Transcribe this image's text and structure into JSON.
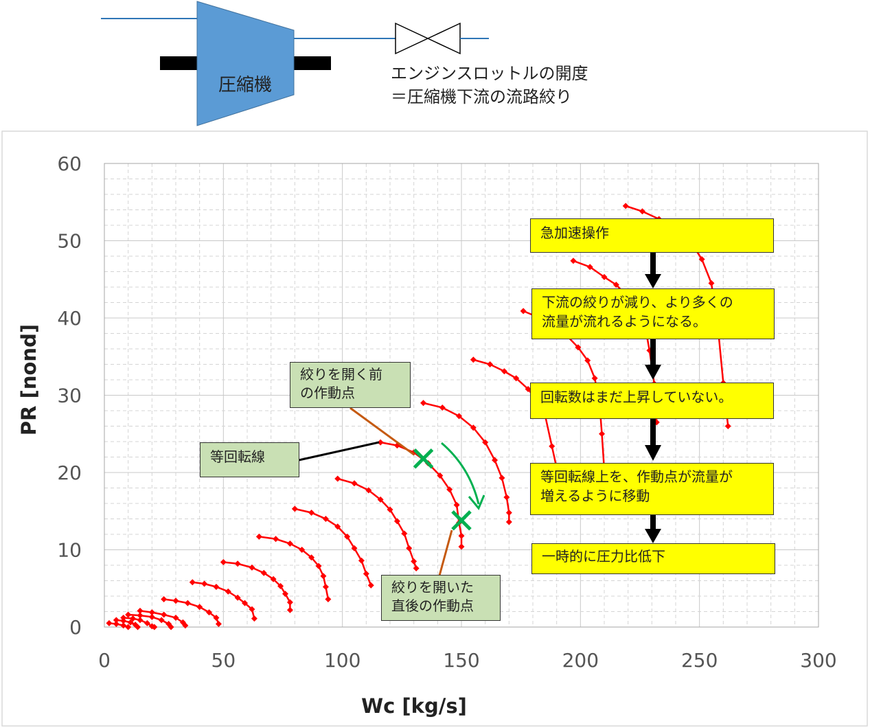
{
  "schematic": {
    "compressor_label": "圧縮機",
    "throttle_label": "エンジンスロットルの開度",
    "throttle_note": "＝圧縮機下流の流路絞り"
  },
  "callouts": {
    "constant_speed_line": "等回転線",
    "before_open_line1": "絞りを開く前",
    "before_open_line2": "の作動点",
    "after_open_line1": "絞りを開いた",
    "after_open_line2": "直後の作動点"
  },
  "flow_steps": [
    {
      "line1": "急加速操作",
      "line2": ""
    },
    {
      "line1": "下流の絞りが減り、より多くの",
      "line2": "流量が流れるようになる。"
    },
    {
      "line1": "回転数はまだ上昇していない。",
      "line2": ""
    },
    {
      "line1": "等回転線上を、作動点が流量が",
      "line2": "増えるように移動"
    },
    {
      "line1": "一時的に圧力比低下",
      "line2": ""
    }
  ],
  "colors": {
    "compressor": "#5b9bd5",
    "pipe": "#2e75b6",
    "series": "#ff0000",
    "marker_x": "#00b050",
    "arrow_green": "#00b050",
    "callout_leader": "#c55a11",
    "step_box": "#ffff00",
    "note_box": "#c9e0b4"
  },
  "chart_data": {
    "type": "scatter",
    "title": "",
    "xlabel": "Wc [kg/s]",
    "ylabel": "PR [nond]",
    "xlim": [
      0,
      300
    ],
    "ylim": [
      0,
      60
    ],
    "x_ticks": [
      0,
      50,
      100,
      150,
      200,
      250,
      300
    ],
    "y_ticks": [
      0,
      10,
      20,
      30,
      40,
      50,
      60
    ],
    "grid": true,
    "markers": "diamond",
    "series": [
      {
        "values": [
          [
            2,
            0.5
          ],
          [
            5,
            0.4
          ],
          [
            8,
            0.2
          ],
          [
            10,
            0
          ]
        ]
      },
      {
        "values": [
          [
            5,
            0.9
          ],
          [
            8,
            0.8
          ],
          [
            11,
            0.6
          ],
          [
            13,
            0.3
          ],
          [
            14,
            0
          ]
        ]
      },
      {
        "values": [
          [
            8,
            1.2
          ],
          [
            12,
            1.1
          ],
          [
            15,
            0.9
          ],
          [
            18,
            0.5
          ],
          [
            20,
            0.1
          ],
          [
            21,
            0
          ]
        ]
      },
      {
        "values": [
          [
            10,
            1.6
          ],
          [
            15,
            1.5
          ],
          [
            20,
            1.3
          ],
          [
            24,
            0.9
          ],
          [
            27,
            0.4
          ],
          [
            28,
            0
          ]
        ]
      },
      {
        "values": [
          [
            15,
            2.1
          ],
          [
            20,
            1.9
          ],
          [
            25,
            1.6
          ],
          [
            30,
            1.2
          ],
          [
            33,
            0.6
          ],
          [
            34,
            0.2
          ]
        ]
      },
      {
        "values": [
          [
            25,
            3.6
          ],
          [
            30,
            3.4
          ],
          [
            35,
            3.1
          ],
          [
            40,
            2.6
          ],
          [
            44,
            1.9
          ],
          [
            47,
            1.2
          ],
          [
            48,
            0.4
          ]
        ]
      },
      {
        "values": [
          [
            37,
            5.8
          ],
          [
            42,
            5.6
          ],
          [
            47,
            5.2
          ],
          [
            52,
            4.6
          ],
          [
            56,
            3.8
          ],
          [
            59,
            3.1
          ],
          [
            62,
            2.3
          ],
          [
            63,
            1.1
          ]
        ]
      },
      {
        "values": [
          [
            50,
            8.4
          ],
          [
            56,
            8.2
          ],
          [
            62,
            7.7
          ],
          [
            67,
            7.0
          ],
          [
            71,
            6.2
          ],
          [
            74,
            5.3
          ],
          [
            76,
            4.3
          ],
          [
            78,
            3.2
          ],
          [
            78,
            2.2
          ]
        ]
      },
      {
        "values": [
          [
            65,
            11.7
          ],
          [
            72,
            11.4
          ],
          [
            78,
            10.8
          ],
          [
            83,
            10.0
          ],
          [
            87,
            9.0
          ],
          [
            90,
            7.9
          ],
          [
            92,
            6.6
          ],
          [
            93,
            5.2
          ],
          [
            94,
            3.6
          ]
        ]
      },
      {
        "values": [
          [
            80,
            15.3
          ],
          [
            87,
            14.8
          ],
          [
            93,
            14.0
          ],
          [
            98,
            13.0
          ],
          [
            102,
            11.7
          ],
          [
            105,
            10.2
          ],
          [
            108,
            8.6
          ],
          [
            110,
            6.9
          ],
          [
            112,
            5.4
          ]
        ]
      },
      {
        "values": [
          [
            98,
            19.2
          ],
          [
            105,
            18.6
          ],
          [
            111,
            17.7
          ],
          [
            116,
            16.5
          ],
          [
            120,
            15.2
          ],
          [
            123,
            13.7
          ],
          [
            126,
            12.1
          ],
          [
            128,
            10.2
          ],
          [
            130,
            8.5
          ],
          [
            131,
            7.6
          ]
        ]
      },
      {
        "values": [
          [
            116,
            23.9
          ],
          [
            123,
            23.5
          ],
          [
            130,
            22.6
          ],
          [
            136,
            21.2
          ],
          [
            141,
            19.6
          ],
          [
            145,
            17.8
          ],
          [
            148,
            15.8
          ],
          [
            149,
            13.5
          ],
          [
            150,
            11.8
          ],
          [
            150,
            10.4
          ]
        ]
      },
      {
        "values": [
          [
            134,
            29.0
          ],
          [
            142,
            28.4
          ],
          [
            149,
            27.3
          ],
          [
            155,
            25.8
          ],
          [
            160,
            23.9
          ],
          [
            164,
            21.6
          ],
          [
            167,
            19.3
          ],
          [
            169,
            16.8
          ],
          [
            170,
            14.8
          ],
          [
            170,
            13.6
          ]
        ]
      },
      {
        "values": [
          [
            155,
            34.6
          ],
          [
            162,
            34.0
          ],
          [
            168,
            33.1
          ],
          [
            173,
            32.2
          ],
          [
            178,
            30.8
          ],
          [
            182,
            29.2
          ],
          [
            185,
            27.6
          ],
          [
            188,
            23.4
          ],
          [
            190,
            20.6
          ],
          [
            190,
            16.8
          ]
        ]
      },
      {
        "values": [
          [
            176,
            40.9
          ],
          [
            183,
            40.0
          ],
          [
            189,
            39.0
          ],
          [
            194,
            37.8
          ],
          [
            199,
            36.2
          ],
          [
            203,
            34.5
          ],
          [
            206,
            32.2
          ],
          [
            208,
            29.0
          ],
          [
            209,
            25.0
          ],
          [
            210,
            20.3
          ]
        ]
      },
      {
        "values": [
          [
            197,
            47.4
          ],
          [
            204,
            46.6
          ],
          [
            210,
            45.3
          ],
          [
            215,
            44.3
          ],
          [
            220,
            42.7
          ],
          [
            224,
            41.2
          ],
          [
            227,
            39.2
          ],
          [
            229,
            35.8
          ],
          [
            231,
            31.5
          ],
          [
            232,
            26.5
          ]
        ]
      },
      {
        "values": [
          [
            219,
            54.5
          ],
          [
            226,
            53.8
          ],
          [
            233,
            52.8
          ],
          [
            240,
            51.6
          ],
          [
            246,
            50.0
          ],
          [
            251,
            47.6
          ],
          [
            255,
            44.5
          ],
          [
            258,
            38.0
          ],
          [
            260,
            31.6
          ],
          [
            262,
            26.0
          ]
        ]
      }
    ],
    "points_marked": [
      {
        "label": "絞りを開く前の作動点",
        "x": 134,
        "y": 21.8
      },
      {
        "label": "絞りを開いた直後の作動点",
        "x": 150,
        "y": 13.8
      }
    ]
  }
}
